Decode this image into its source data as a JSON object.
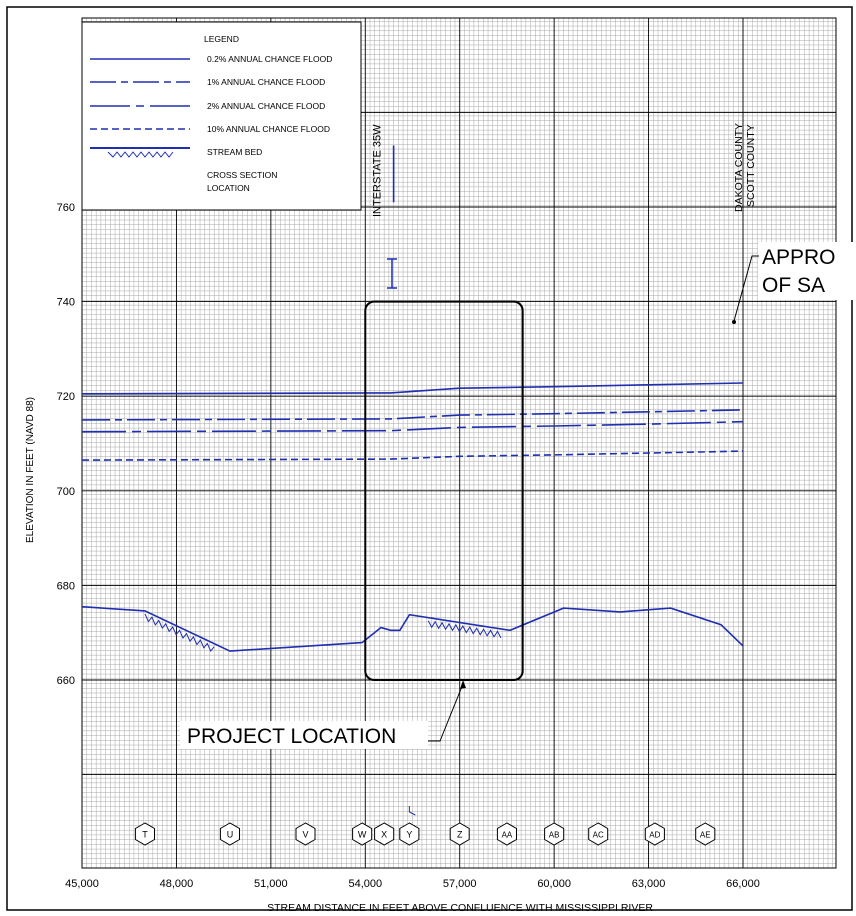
{
  "chart_data": {
    "type": "line",
    "xlabel": "STREAM DISTANCE IN FEET ABOVE CONFLUENCE WITH MISSISSIPPI RIVER",
    "ylabel": "ELEVATION IN FEET (NAVD 88)",
    "xlim": [
      45000,
      68000
    ],
    "ylim": [
      640,
      780
    ],
    "x_ticks": [
      45000,
      48000,
      51000,
      54000,
      57000,
      60000,
      63000,
      66000
    ],
    "x_tick_labels": [
      "45,000",
      "48,000",
      "51,000",
      "54,000",
      "57,000",
      "60,000",
      "63,000",
      "66,000"
    ],
    "y_ticks": [
      660,
      680,
      700,
      720,
      740,
      760
    ],
    "y_tick_labels": [
      "660",
      "680",
      "700",
      "720",
      "740",
      "760"
    ],
    "grid": true,
    "legend_position": "top-left",
    "legend": {
      "title": "LEGEND",
      "items": [
        {
          "label": "0.2% ANNUAL CHANCE FLOOD",
          "style": "solid"
        },
        {
          "label": "1% ANNUAL CHANCE FLOOD",
          "style": "dash-dot"
        },
        {
          "label": "2% ANNUAL CHANCE FLOOD",
          "style": "long-dash-dot"
        },
        {
          "label": "10% ANNUAL CHANCE FLOOD",
          "style": "dashed"
        },
        {
          "label": "STREAM BED",
          "style": "hatched"
        },
        {
          "label": "CROSS SECTION LOCATION",
          "style": "marker"
        }
      ]
    },
    "series": [
      {
        "name": "0.2% ANNUAL CHANCE FLOOD",
        "style": "solid",
        "x": [
          45000,
          54800,
          57000,
          60000,
          63000,
          66000
        ],
        "y": [
          720.5,
          720.7,
          721.7,
          722.0,
          722.4,
          722.8
        ]
      },
      {
        "name": "1% ANNUAL CHANCE FLOOD",
        "style": "dash-dot",
        "x": [
          45000,
          54800,
          57000,
          60000,
          63000,
          66000
        ],
        "y": [
          715.0,
          715.2,
          716.0,
          716.3,
          716.7,
          717.1
        ]
      },
      {
        "name": "2% ANNUAL CHANCE FLOOD",
        "style": "long-dash-dot",
        "x": [
          45000,
          54800,
          57000,
          60000,
          63000,
          66000
        ],
        "y": [
          712.5,
          712.7,
          713.4,
          713.7,
          714.1,
          714.6
        ]
      },
      {
        "name": "10% ANNUAL CHANCE FLOOD",
        "style": "dashed",
        "x": [
          45000,
          54800,
          57000,
          60000,
          63000,
          66000
        ],
        "y": [
          706.5,
          706.7,
          707.3,
          707.6,
          708.0,
          708.4
        ]
      },
      {
        "name": "STREAM BED",
        "style": "bed",
        "x": [
          45000,
          47000,
          49700,
          53900,
          54500,
          54800,
          55100,
          55400,
          58600,
          60300,
          62100,
          63700,
          65300,
          66000
        ],
        "y": [
          675.5,
          674.6,
          666.1,
          667.9,
          671.1,
          670.5,
          670.5,
          673.8,
          670.5,
          675.2,
          674.4,
          675.2,
          671.7,
          667.2
        ]
      }
    ],
    "cross_sections": [
      {
        "label": "T",
        "x": 47000
      },
      {
        "label": "U",
        "x": 49700
      },
      {
        "label": "V",
        "x": 52100
      },
      {
        "label": "W",
        "x": 53900
      },
      {
        "label": "X",
        "x": 54600
      },
      {
        "label": "Y",
        "x": 55400
      },
      {
        "label": "Z",
        "x": 57000
      },
      {
        "label": "AA",
        "x": 58500
      },
      {
        "label": "AB",
        "x": 60000
      },
      {
        "label": "AC",
        "x": 61400
      },
      {
        "label": "AD",
        "x": 63200
      },
      {
        "label": "AE",
        "x": 64800
      }
    ],
    "annotations": [
      {
        "text": "INTERSTATE 35W",
        "x": 54900,
        "y1": 761,
        "y2": 773
      },
      {
        "text": "DAKOTA COUNTY",
        "x": 65700
      },
      {
        "text": "SCOTT COUNTY",
        "x": 66000
      },
      {
        "text": "PROJECT LOCATION",
        "box_x": [
          54000,
          59000
        ],
        "box_y": [
          660,
          740
        ]
      },
      {
        "text": "APPRO",
        "x": 66200
      },
      {
        "text": "OF SA",
        "x": 66200
      }
    ],
    "colors": {
      "line": "#1f2fb0",
      "grid_fine": "#9a9a9a",
      "grid_major": "#000000"
    }
  }
}
